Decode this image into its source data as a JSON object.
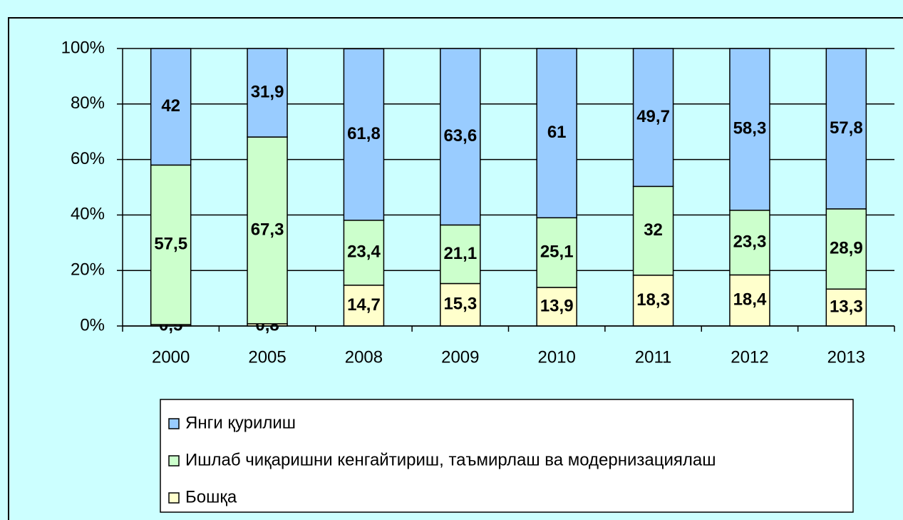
{
  "chart_data": {
    "type": "stacked_bar",
    "categories": [
      "2000",
      "2005",
      "2008",
      "2009",
      "2010",
      "2011",
      "2012",
      "2013"
    ],
    "series": [
      {
        "name": "Бошқа",
        "color": "#ffffcc",
        "values": [
          0.5,
          0.8,
          14.7,
          15.3,
          13.9,
          18.3,
          18.4,
          13.3
        ],
        "value_labels": [
          "0,5",
          "0,8",
          "14,7",
          "15,3",
          "13,9",
          "18,3",
          "18,4",
          "13,3"
        ]
      },
      {
        "name": "Ишлаб чиқаришни кенгайтириш, таъмирлаш ва модернизациялаш",
        "color": "#ccffcc",
        "values": [
          57.5,
          67.3,
          23.4,
          21.1,
          25.1,
          32,
          23.3,
          28.9
        ],
        "value_labels": [
          "57,5",
          "67,3",
          "23,4",
          "21,1",
          "25,1",
          "32",
          "23,3",
          "28,9"
        ]
      },
      {
        "name": "Янги қурилиш",
        "color": "#99ccff",
        "values": [
          42,
          31.9,
          61.8,
          63.6,
          61,
          49.7,
          58.3,
          57.8
        ],
        "value_labels": [
          "42",
          "31,9",
          "61,8",
          "63,6",
          "61",
          "49,7",
          "58,3",
          "57,8"
        ]
      }
    ],
    "ylim": [
      0,
      100
    ],
    "yticks": [
      {
        "value": 0,
        "label": "0%"
      },
      {
        "value": 20,
        "label": "20%"
      },
      {
        "value": 40,
        "label": "40%"
      },
      {
        "value": 60,
        "label": "60%"
      },
      {
        "value": 80,
        "label": "80%"
      },
      {
        "value": 100,
        "label": "100%"
      }
    ],
    "grid": true
  }
}
